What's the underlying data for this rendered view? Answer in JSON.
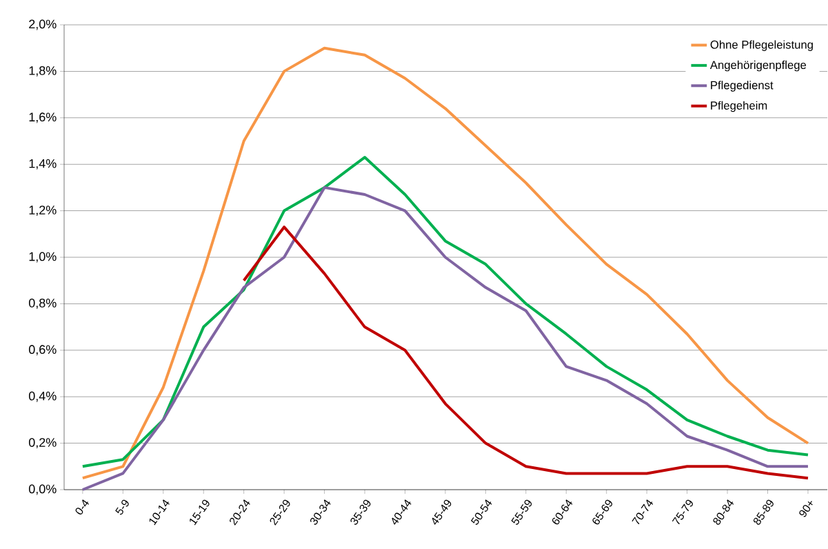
{
  "chart_data": {
    "type": "line",
    "categories": [
      "0-4",
      "5-9",
      "10-14",
      "15-19",
      "20-24",
      "25-29",
      "30-34",
      "35-39",
      "40-44",
      "45-49",
      "50-54",
      "55-59",
      "60-64",
      "65-69",
      "70-74",
      "75-79",
      "80-84",
      "85-89",
      "90+"
    ],
    "series": [
      {
        "name": "Ohne Pflegeleistung",
        "color": "#f79646",
        "values": [
          0.05,
          0.1,
          0.44,
          0.94,
          1.5,
          1.8,
          1.9,
          1.87,
          1.77,
          1.64,
          1.48,
          1.32,
          1.14,
          0.97,
          0.84,
          0.67,
          0.47,
          0.31,
          0.2
        ]
      },
      {
        "name": "Angehörigenpflege",
        "color": "#00b050",
        "values": [
          0.1,
          0.13,
          0.3,
          0.7,
          0.86,
          1.2,
          1.3,
          1.43,
          1.27,
          1.07,
          0.97,
          0.8,
          0.67,
          0.53,
          0.43,
          0.3,
          0.23,
          0.17,
          0.15
        ]
      },
      {
        "name": "Pflegedienst",
        "color": "#8064a2",
        "values": [
          0.0,
          0.07,
          0.3,
          0.6,
          0.87,
          1.0,
          1.3,
          1.27,
          1.2,
          1.0,
          0.87,
          0.77,
          0.53,
          0.47,
          0.37,
          0.23,
          0.17,
          0.1,
          0.1
        ]
      },
      {
        "name": "Pflegeheim",
        "color": "#c00000",
        "values": [
          null,
          null,
          null,
          null,
          0.9,
          1.13,
          0.93,
          0.7,
          0.6,
          0.37,
          0.2,
          0.1,
          0.07,
          0.07,
          0.07,
          0.1,
          0.1,
          0.07,
          0.05
        ]
      }
    ],
    "ylim": [
      0,
      2.0
    ],
    "yticks": [
      {
        "value": 0,
        "label": "0,0%"
      },
      {
        "value": 0.2,
        "label": "0,2%"
      },
      {
        "value": 0.4,
        "label": "0,4%"
      },
      {
        "value": 0.6,
        "label": "0,6%"
      },
      {
        "value": 0.8,
        "label": "0,8%"
      },
      {
        "value": 1.0,
        "label": "1,0%"
      },
      {
        "value": 1.2,
        "label": "1,2%"
      },
      {
        "value": 1.4,
        "label": "1,4%"
      },
      {
        "value": 1.6,
        "label": "1,6%"
      },
      {
        "value": 1.8,
        "label": "1,8%"
      },
      {
        "value": 2.0,
        "label": "2,0%"
      }
    ],
    "grid": "y",
    "legend": "top right",
    "marker": "none",
    "line_style": "solid"
  }
}
